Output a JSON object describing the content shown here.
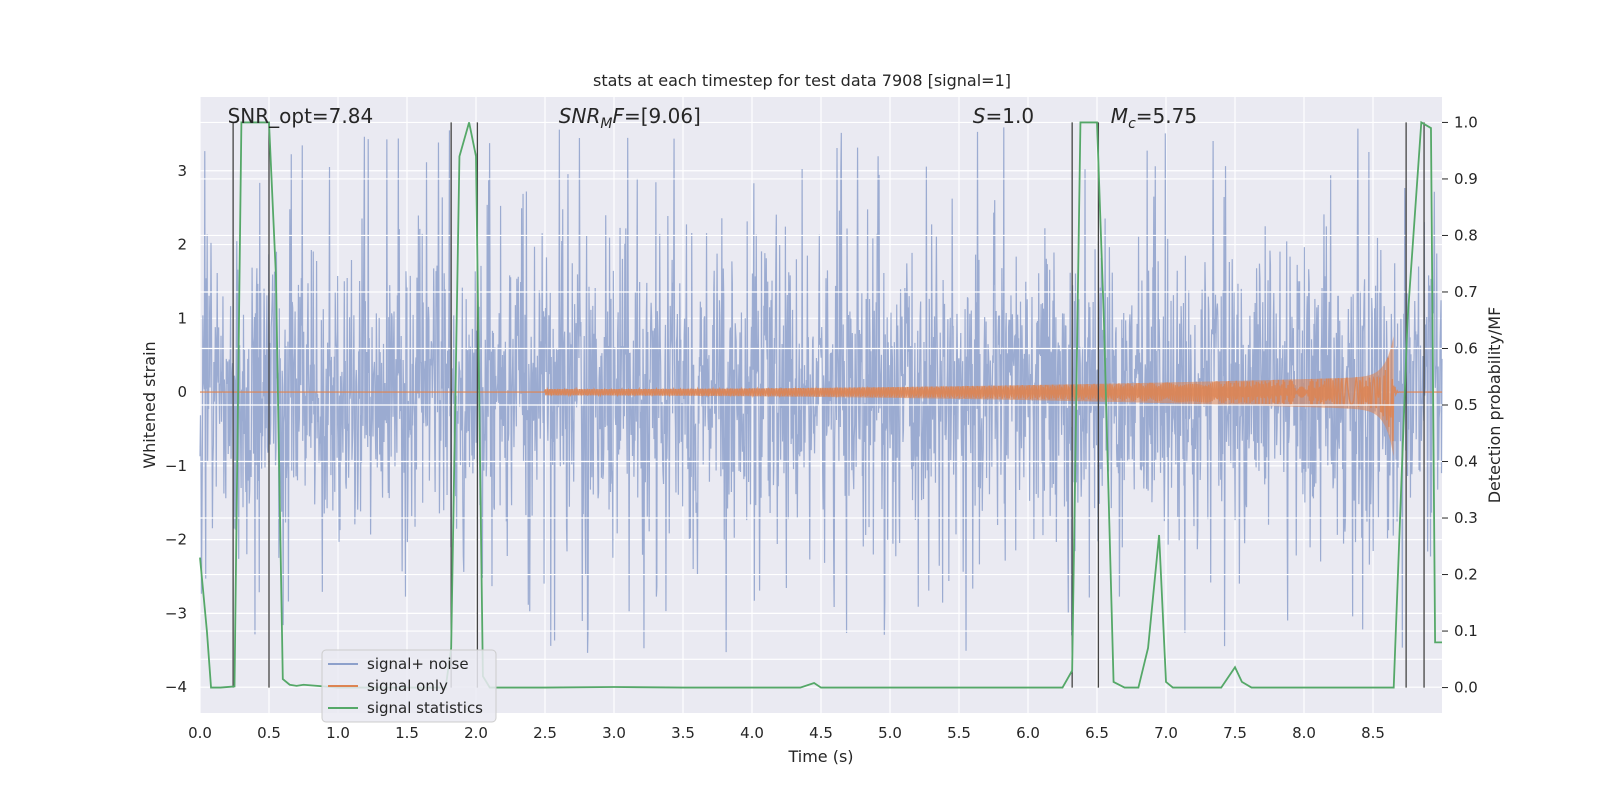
{
  "chart_data": {
    "type": "line",
    "title": "stats at each timestep for test data 7908 [signal=1]",
    "xlabel": "Time (s)",
    "ylabel": "Whitened strain",
    "ylabel_right": "Detection probability/MF",
    "xlim": [
      0,
      9.0
    ],
    "ylim": [
      -4.35,
      4.0
    ],
    "ylim_right": [
      -0.045,
      1.045
    ],
    "x_ticks": [
      0.0,
      0.5,
      1.0,
      1.5,
      2.0,
      2.5,
      3.0,
      3.5,
      4.0,
      4.5,
      5.0,
      5.5,
      6.0,
      6.5,
      7.0,
      7.5,
      8.0,
      8.5
    ],
    "x_tick_labels": [
      "0.0",
      "0.5",
      "1.0",
      "1.5",
      "2.0",
      "2.5",
      "3.0",
      "3.5",
      "4.0",
      "4.5",
      "5.0",
      "5.5",
      "6.0",
      "6.5",
      "7.0",
      "7.5",
      "8.0",
      "8.5"
    ],
    "y_ticks": [
      -4,
      -3,
      -2,
      -1,
      0,
      1,
      2,
      3
    ],
    "y_tick_labels": [
      "−4",
      "−3",
      "−2",
      "−1",
      "0",
      "1",
      "2",
      "3"
    ],
    "y_right_ticks": [
      0.0,
      0.1,
      0.2,
      0.3,
      0.4,
      0.5,
      0.6,
      0.7,
      0.8,
      0.9,
      1.0
    ],
    "y_right_tick_labels": [
      "0.0",
      "0.1",
      "0.2",
      "0.3",
      "0.4",
      "0.5",
      "0.6",
      "0.7",
      "0.8",
      "0.9",
      "1.0"
    ],
    "grid": true,
    "legend_position": "lower-left",
    "annotations": [
      {
        "id": "snr-opt",
        "text": "SNR_opt=7.84",
        "x": 0.2,
        "y": 3.6
      },
      {
        "id": "snr-mf",
        "text": "SNR_MF=[9.06]",
        "x": 2.6,
        "y": 3.6
      },
      {
        "id": "s",
        "text": "S=1.0",
        "x": 5.6,
        "y": 3.6
      },
      {
        "id": "mc",
        "text": "M_c=5.75",
        "x": 6.6,
        "y": 3.6
      }
    ],
    "series": [
      {
        "name": "signal+ noise",
        "color": "#8da0cb",
        "axis": "left",
        "kind": "noise",
        "core_amplitude": 1.5,
        "spike_max": 3.7,
        "spike_min": -3.95
      },
      {
        "name": "signal only",
        "color": "#dd8452",
        "axis": "left",
        "kind": "chirp",
        "start": 2.5,
        "merger": 8.65,
        "peak_amplitude": 0.8,
        "min_peak": -0.95
      },
      {
        "name": "signal statistics",
        "color": "#55a868",
        "axis": "right",
        "kind": "line",
        "x": [
          0.0,
          0.05,
          0.08,
          0.15,
          0.25,
          0.3,
          0.5,
          0.55,
          0.6,
          0.65,
          0.7,
          0.75,
          1.0,
          1.5,
          1.78,
          1.82,
          1.88,
          1.95,
          2.0,
          2.05,
          2.1,
          2.5,
          3.0,
          3.5,
          4.0,
          4.35,
          4.45,
          4.5,
          5.0,
          5.5,
          6.0,
          6.25,
          6.32,
          6.38,
          6.5,
          6.55,
          6.62,
          6.7,
          6.8,
          6.87,
          6.95,
          7.0,
          7.05,
          7.2,
          7.4,
          7.5,
          7.55,
          7.62,
          8.0,
          8.5,
          8.65,
          8.75,
          8.85,
          8.92,
          8.95,
          9.0
        ],
        "y": [
          0.23,
          0.1,
          0.0,
          0.0,
          0.002,
          1.0,
          1.0,
          0.73,
          0.015,
          0.005,
          0.003,
          0.005,
          0.0,
          0.0,
          0.0,
          0.07,
          0.94,
          1.0,
          0.94,
          0.02,
          0.0,
          0.0,
          0.001,
          0.0,
          0.0,
          0.0,
          0.008,
          0.0,
          0.0,
          0.0,
          0.0,
          0.0,
          0.03,
          1.0,
          1.0,
          0.65,
          0.01,
          0.0,
          0.0,
          0.07,
          0.27,
          0.01,
          0.0,
          0.0,
          0.0,
          0.036,
          0.01,
          0.0,
          0.0,
          0.0,
          0.0,
          0.65,
          1.0,
          0.99,
          0.08,
          0.08
        ]
      }
    ],
    "vlines": [
      0.24,
      0.5,
      1.82,
      2.01,
      6.32,
      6.51,
      8.74,
      8.87
    ],
    "hlines_right": [
      0.05,
      0.1,
      0.2,
      0.3,
      0.4,
      0.5,
      0.6,
      0.7,
      0.8,
      0.9,
      1.0
    ]
  }
}
